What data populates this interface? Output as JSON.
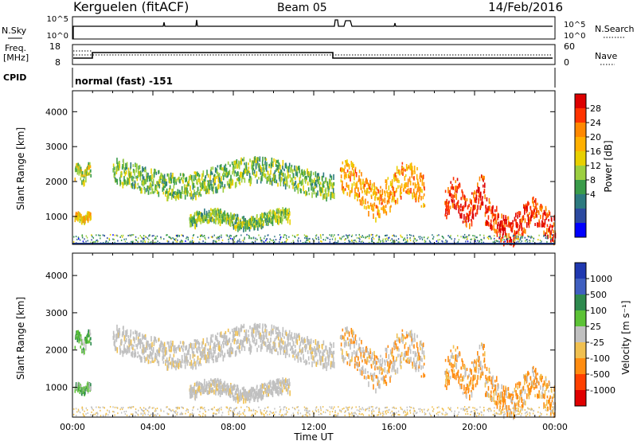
{
  "header": {
    "station": "Kerguelen (fitACF)",
    "beam": "Beam 05",
    "date": "14/Feb/2016"
  },
  "sky_panel": {
    "left_label": "N.Sky",
    "right_label": "N.Search",
    "left_ticks": [
      "10^5",
      "10^0"
    ],
    "right_ticks": [
      "10^5",
      "10^0"
    ]
  },
  "freq_panel": {
    "left_label_line1": "Freq.",
    "left_label_line2": "[MHz]",
    "right_label": "Nave",
    "left_ticks": [
      "18",
      "8"
    ],
    "right_ticks": [
      "60",
      "0"
    ]
  },
  "cpid": {
    "label": "CPID",
    "text": "normal (fast) -151"
  },
  "axes": {
    "x_ticks": [
      "00:00",
      "04:00",
      "08:00",
      "12:00",
      "16:00",
      "20:00",
      "00:00"
    ],
    "x_title": "Time UT",
    "y_ticks": [
      "4000",
      "3000",
      "2000",
      "1000"
    ],
    "y_title": "Slant Range [km]"
  },
  "power_colorbar": {
    "title": "Power [dB]",
    "labels": [
      "28",
      "24",
      "20",
      "16",
      "12",
      "8",
      "4"
    ],
    "colors": [
      "#dd0000",
      "#ff3300",
      "#ff8800",
      "#ffb000",
      "#e8d000",
      "#9ccf40",
      "#3a9c4a",
      "#2d7a80",
      "#2c4aa0",
      "#0000ff"
    ]
  },
  "velocity_colorbar": {
    "title": "Velocity [m s⁻¹]",
    "labels": [
      "1000",
      "500",
      "100",
      "25",
      "-25",
      "-100",
      "-500",
      "-1000"
    ],
    "colors": [
      "#1f38b0",
      "#3f5fc0",
      "#2e8a4e",
      "#5cc236",
      "#c0c0c0",
      "#f0c050",
      "#ff8c10",
      "#ff4000",
      "#e00000"
    ]
  },
  "chart_data": {
    "type": "heatmap",
    "x_range_hours": [
      0,
      24
    ],
    "y_range_km": [
      200,
      4600
    ],
    "panels": [
      "power",
      "velocity"
    ],
    "approx_echo_regions": [
      {
        "t_start": 0.1,
        "t_end": 0.9,
        "range_start_km": 2100,
        "range_end_km": 2450,
        "power_db": 16
      },
      {
        "t_start": 0.1,
        "t_end": 0.9,
        "range_start_km": 900,
        "range_end_km": 1100,
        "power_db": 20
      },
      {
        "t_start": 2.0,
        "t_end": 13.0,
        "range_start_km": 1800,
        "range_end_km": 2500,
        "power_db": 14
      },
      {
        "t_start": 5.8,
        "t_end": 10.8,
        "range_start_km": 800,
        "range_end_km": 1150,
        "power_db": 14
      },
      {
        "t_start": 13.3,
        "t_end": 17.5,
        "range_start_km": 1300,
        "range_end_km": 2300,
        "power_db": 22
      },
      {
        "t_start": 18.5,
        "t_end": 20.5,
        "range_start_km": 1000,
        "range_end_km": 1900,
        "power_db": 28
      },
      {
        "t_start": 20.5,
        "t_end": 24.0,
        "range_start_km": 500,
        "range_end_km": 1300,
        "power_db": 28
      }
    ],
    "frequency_mhz": [
      {
        "t_start": 0.0,
        "t_end": 1.0,
        "value": 10
      },
      {
        "t_start": 1.0,
        "t_end": 13.0,
        "value": 12
      },
      {
        "t_start": 13.0,
        "t_end": 24.0,
        "value": 10
      }
    ],
    "nave_level": 30
  }
}
